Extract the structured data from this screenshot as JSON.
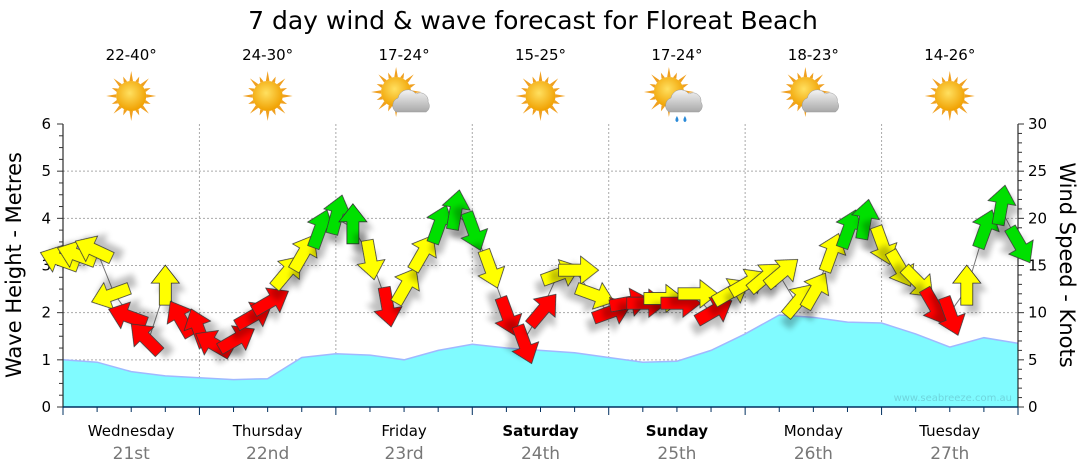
{
  "chart_data": {
    "type": "area+arrows",
    "title": "7 day wind & wave forecast for Floreat Beach",
    "ylabel": "Wave Height - Metres",
    "y2label": "Wind Speed - Knots",
    "ylim": [
      0,
      6
    ],
    "y2lim": [
      0,
      30
    ],
    "yticks": [
      "0",
      "1",
      "2",
      "3",
      "4",
      "5",
      "6"
    ],
    "y2ticks": [
      "0",
      "5",
      "10",
      "15",
      "20",
      "25",
      "30"
    ],
    "grid": true,
    "watermark": "www.seabreeze.com.au",
    "days": [
      {
        "name": "Wednesday",
        "date": "21st",
        "temp": "22-40°",
        "weather": "sunny",
        "bold": false
      },
      {
        "name": "Thursday",
        "date": "22nd",
        "temp": "24-30°",
        "weather": "sunny",
        "bold": false
      },
      {
        "name": "Friday",
        "date": "23rd",
        "temp": "17-24°",
        "weather": "partly-cloudy",
        "bold": false
      },
      {
        "name": "Saturday",
        "date": "24th",
        "temp": "15-25°",
        "weather": "sunny",
        "bold": true
      },
      {
        "name": "Sunday",
        "date": "25th",
        "temp": "17-24°",
        "weather": "showers",
        "bold": true
      },
      {
        "name": "Monday",
        "date": "26th",
        "temp": "18-23°",
        "weather": "partly-cloudy",
        "bold": false
      },
      {
        "name": "Tuesday",
        "date": "27th",
        "temp": "14-26°",
        "weather": "sunny",
        "bold": false
      }
    ],
    "wave_hours_step": 6,
    "wave_height_m": [
      1.0,
      0.95,
      0.75,
      0.66,
      0.62,
      0.58,
      0.6,
      1.05,
      1.13,
      1.1,
      1.0,
      1.2,
      1.33,
      1.25,
      1.2,
      1.15,
      1.05,
      0.95,
      0.97,
      1.2,
      1.55,
      1.95,
      1.9,
      1.8,
      1.78,
      1.55,
      1.27,
      1.47,
      1.35
    ],
    "wind_hours_step": 3,
    "wind": [
      {
        "kt": 15.5,
        "dir": 290,
        "c": "y"
      },
      {
        "kt": 16,
        "dir": 290,
        "c": "y"
      },
      {
        "kt": 16.5,
        "dir": 295,
        "c": "y"
      },
      {
        "kt": 12,
        "dir": 250,
        "c": "y"
      },
      {
        "kt": 9.5,
        "dir": 290,
        "c": "r"
      },
      {
        "kt": 7,
        "dir": 315,
        "c": "r"
      },
      {
        "kt": 12.5,
        "dir": 0,
        "c": "y"
      },
      {
        "kt": 9,
        "dir": 330,
        "c": "r"
      },
      {
        "kt": 8,
        "dir": 340,
        "c": "r"
      },
      {
        "kt": 6.5,
        "dir": 300,
        "c": "r"
      },
      {
        "kt": 7,
        "dir": 60,
        "c": "r"
      },
      {
        "kt": 9.5,
        "dir": 60,
        "c": "r"
      },
      {
        "kt": 11,
        "dir": 60,
        "c": "r"
      },
      {
        "kt": 14,
        "dir": 40,
        "c": "y"
      },
      {
        "kt": 16,
        "dir": 30,
        "c": "y"
      },
      {
        "kt": 18.5,
        "dir": 20,
        "c": "g"
      },
      {
        "kt": 20,
        "dir": 15,
        "c": "g"
      },
      {
        "kt": 19,
        "dir": 0,
        "c": "g"
      },
      {
        "kt": 16,
        "dir": 170,
        "c": "y"
      },
      {
        "kt": 11,
        "dir": 170,
        "c": "r"
      },
      {
        "kt": 12.5,
        "dir": 30,
        "c": "y"
      },
      {
        "kt": 16,
        "dir": 30,
        "c": "y"
      },
      {
        "kt": 19,
        "dir": 20,
        "c": "g"
      },
      {
        "kt": 20.5,
        "dir": 10,
        "c": "g"
      },
      {
        "kt": 19,
        "dir": 160,
        "c": "g"
      },
      {
        "kt": 15,
        "dir": 160,
        "c": "y"
      },
      {
        "kt": 10,
        "dir": 160,
        "c": "r"
      },
      {
        "kt": 7,
        "dir": 160,
        "c": "r"
      },
      {
        "kt": 10,
        "dir": 40,
        "c": "r"
      },
      {
        "kt": 14,
        "dir": 70,
        "c": "y"
      },
      {
        "kt": 14.5,
        "dir": 90,
        "c": "y"
      },
      {
        "kt": 12,
        "dir": 110,
        "c": "y"
      },
      {
        "kt": 10,
        "dir": 70,
        "c": "r"
      },
      {
        "kt": 11,
        "dir": 80,
        "c": "r"
      },
      {
        "kt": 11,
        "dir": 90,
        "c": "r"
      },
      {
        "kt": 11.5,
        "dir": 90,
        "c": "y"
      },
      {
        "kt": 11,
        "dir": 90,
        "c": "r"
      },
      {
        "kt": 12,
        "dir": 90,
        "c": "y"
      },
      {
        "kt": 10,
        "dir": 60,
        "c": "r"
      },
      {
        "kt": 12,
        "dir": 60,
        "c": "y"
      },
      {
        "kt": 13,
        "dir": 60,
        "c": "y"
      },
      {
        "kt": 13.5,
        "dir": 50,
        "c": "y"
      },
      {
        "kt": 14,
        "dir": 50,
        "c": "y"
      },
      {
        "kt": 11,
        "dir": 40,
        "c": "y"
      },
      {
        "kt": 12,
        "dir": 30,
        "c": "y"
      },
      {
        "kt": 16,
        "dir": 20,
        "c": "y"
      },
      {
        "kt": 18.5,
        "dir": 20,
        "c": "g"
      },
      {
        "kt": 19.5,
        "dir": 10,
        "c": "g"
      },
      {
        "kt": 17.5,
        "dir": 160,
        "c": "y"
      },
      {
        "kt": 15,
        "dir": 150,
        "c": "y"
      },
      {
        "kt": 13.5,
        "dir": 135,
        "c": "y"
      },
      {
        "kt": 11,
        "dir": 150,
        "c": "r"
      },
      {
        "kt": 10,
        "dir": 160,
        "c": "r"
      },
      {
        "kt": 12.5,
        "dir": 0,
        "c": "y"
      },
      {
        "kt": 18.5,
        "dir": 20,
        "c": "g"
      },
      {
        "kt": 21,
        "dir": 10,
        "c": "g"
      },
      {
        "kt": 17.5,
        "dir": 150,
        "c": "g"
      }
    ],
    "colors": {
      "r": "#ff0000",
      "y": "#ffff00",
      "g": "#00e000",
      "wave": "#80fbff",
      "wave_line": "#a0b8ff"
    }
  }
}
